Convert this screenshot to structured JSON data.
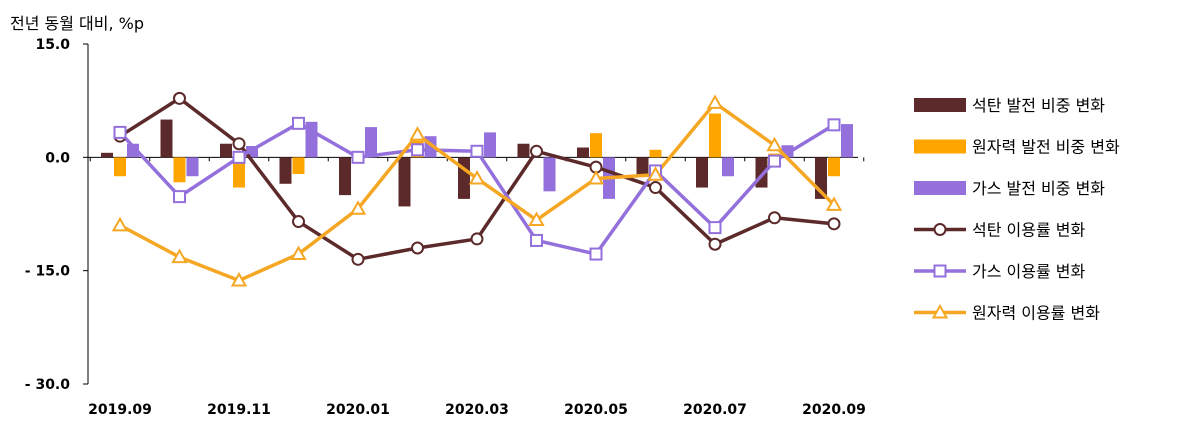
{
  "chart_data": {
    "type": "bar",
    "unit_label": "전년 동월 대비, %p",
    "y_ticks": [
      "15.0",
      "0.0",
      "- 15.0",
      "- 30.0"
    ],
    "y_tick_values": [
      15,
      0,
      -15,
      -30
    ],
    "ylim": [
      -30,
      15
    ],
    "categories": [
      "2019.09",
      "2019.10",
      "2019.11",
      "2019.12",
      "2020.01",
      "2020.02",
      "2020.03",
      "2020.04",
      "2020.05",
      "2020.06",
      "2020.07",
      "2020.08",
      "2020.09"
    ],
    "x_tick_labels": [
      "2019.09",
      "2019.11",
      "2020.01",
      "2020.03",
      "2020.05",
      "2020.07",
      "2020.09"
    ],
    "bar_series": [
      {
        "name": "석탄 발전 비중 변화",
        "color": "#5c2a2a",
        "values": [
          0.6,
          5.0,
          1.8,
          -3.5,
          -5.0,
          -6.5,
          -5.5,
          1.8,
          1.3,
          -2.5,
          -4.0,
          -4.0,
          -5.5
        ]
      },
      {
        "name": "원자력 발전 비중 변화",
        "color": "#ffa500",
        "values": [
          -2.5,
          -3.3,
          -4.0,
          -2.2,
          0.0,
          2.2,
          0.0,
          0.0,
          3.2,
          1.0,
          5.8,
          0.5,
          -2.5
        ]
      },
      {
        "name": "가스 발전 비중 변화",
        "color": "#9370db",
        "values": [
          1.8,
          -2.5,
          1.5,
          4.7,
          4.0,
          2.8,
          3.3,
          -4.5,
          -5.5,
          0.0,
          -2.5,
          1.6,
          4.4
        ]
      }
    ],
    "line_series": [
      {
        "name": "석탄 이용률 변화",
        "color": "#5c2a2a",
        "marker": "circle",
        "values": [
          2.8,
          7.8,
          1.8,
          -8.5,
          -13.5,
          -12.0,
          -10.8,
          0.8,
          -1.3,
          -4.0,
          -11.5,
          -8.0,
          -8.8
        ]
      },
      {
        "name": "가스 이용률 변화",
        "color": "#9370db",
        "marker": "square",
        "values": [
          3.3,
          -5.2,
          0.0,
          4.5,
          0.0,
          1.0,
          0.8,
          -11.0,
          -12.8,
          -1.8,
          -9.3,
          -0.5,
          4.3
        ]
      },
      {
        "name": "원자력 이용률 변화",
        "color": "#f5a623",
        "marker": "triangle",
        "values": [
          -9.0,
          -13.2,
          -16.3,
          -12.8,
          -6.8,
          3.0,
          -2.8,
          -8.3,
          -2.8,
          -2.3,
          7.2,
          1.6,
          -6.3
        ]
      }
    ]
  }
}
